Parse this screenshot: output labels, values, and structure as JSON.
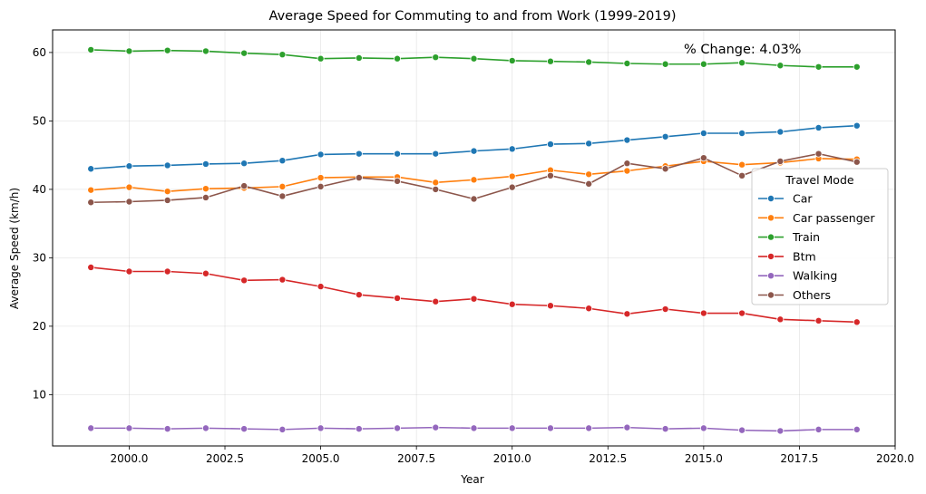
{
  "chart_data": {
    "type": "line",
    "title": "Average Speed for Commuting to and from Work (1999-2019)",
    "xlabel": "Year",
    "ylabel": "Average Speed (km/h)",
    "xlim": [
      1998.0,
      2020.0
    ],
    "ylim": [
      2.5,
      63.3
    ],
    "xticks": [
      2000.0,
      2002.5,
      2005.0,
      2007.5,
      2010.0,
      2012.5,
      2015.0,
      2017.5,
      2020.0
    ],
    "xtick_labels": [
      "2000.0",
      "2002.5",
      "2005.0",
      "2007.5",
      "2010.0",
      "2012.5",
      "2015.0",
      "2017.5",
      "2020.0"
    ],
    "yticks": [
      10,
      20,
      30,
      40,
      50,
      60
    ],
    "ytick_labels": [
      "10",
      "20",
      "30",
      "40",
      "50",
      "60"
    ],
    "grid": true,
    "legend_title": "Travel Mode",
    "legend_position": "center-right",
    "annotation": "% Change: 4.03%",
    "x": [
      1999,
      2000,
      2001,
      2002,
      2003,
      2004,
      2005,
      2006,
      2007,
      2008,
      2009,
      2010,
      2011,
      2012,
      2013,
      2014,
      2015,
      2016,
      2017,
      2018,
      2019
    ],
    "series": [
      {
        "name": "Car",
        "color": "#1f77b4",
        "values": [
          43.0,
          43.4,
          43.5,
          43.7,
          43.8,
          44.2,
          45.1,
          45.2,
          45.2,
          45.2,
          45.6,
          45.9,
          46.6,
          46.7,
          47.2,
          47.7,
          48.2,
          48.2,
          48.4,
          49.0,
          49.3
        ]
      },
      {
        "name": "Car passenger",
        "color": "#ff7f0e",
        "values": [
          39.9,
          40.3,
          39.7,
          40.1,
          40.2,
          40.4,
          41.7,
          41.8,
          41.8,
          41.0,
          41.4,
          41.9,
          42.8,
          42.2,
          42.7,
          43.4,
          44.1,
          43.6,
          43.9,
          44.5,
          44.4
        ]
      },
      {
        "name": "Train",
        "color": "#2ca02c",
        "values": [
          60.4,
          60.2,
          60.3,
          60.2,
          59.9,
          59.7,
          59.1,
          59.2,
          59.1,
          59.3,
          59.1,
          58.8,
          58.7,
          58.6,
          58.4,
          58.3,
          58.3,
          58.5,
          58.1,
          57.9,
          57.9
        ]
      },
      {
        "name": "Btm",
        "color": "#d62728",
        "values": [
          28.6,
          28.0,
          28.0,
          27.7,
          26.7,
          26.8,
          25.8,
          24.6,
          24.1,
          23.6,
          24.0,
          23.2,
          23.0,
          22.6,
          21.8,
          22.5,
          21.9,
          21.9,
          21.0,
          20.8,
          20.6
        ]
      },
      {
        "name": "Walking",
        "color": "#9467bd",
        "values": [
          5.1,
          5.1,
          5.0,
          5.1,
          5.0,
          4.9,
          5.1,
          5.0,
          5.1,
          5.2,
          5.1,
          5.1,
          5.1,
          5.1,
          5.2,
          5.0,
          5.1,
          4.8,
          4.7,
          4.9,
          4.9
        ]
      },
      {
        "name": "Others",
        "color": "#8c564b",
        "values": [
          38.1,
          38.2,
          38.4,
          38.8,
          40.5,
          39.0,
          40.4,
          41.7,
          41.2,
          40.0,
          38.6,
          40.3,
          42.0,
          40.8,
          43.8,
          43.0,
          44.6,
          42.0,
          44.1,
          45.2,
          44.0
        ]
      }
    ]
  }
}
